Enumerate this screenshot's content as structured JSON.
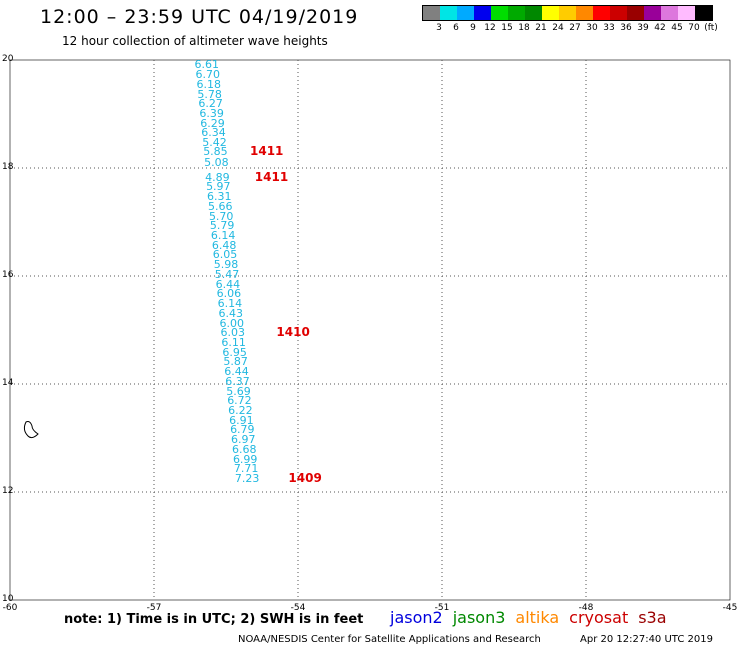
{
  "header": {
    "title": "12:00 – 23:59 UTC 04/19/2019",
    "subtitle": "12 hour collection of altimeter wave heights"
  },
  "legend": {
    "colors": [
      "#808080",
      "#00e5e5",
      "#00aaff",
      "#0000ee",
      "#00dd00",
      "#00aa00",
      "#008800",
      "#ffff00",
      "#ffcc00",
      "#ff8800",
      "#ff0000",
      "#cc0000",
      "#990000",
      "#990099",
      "#dd77dd",
      "#ffbbff",
      "#000000"
    ],
    "labels": [
      "3",
      "6",
      "9",
      "12",
      "15",
      "18",
      "21",
      "24",
      "27",
      "30",
      "33",
      "36",
      "39",
      "42",
      "45",
      "70",
      "(ft)"
    ]
  },
  "axes": {
    "lon_range": [
      -60,
      -45
    ],
    "lat_range": [
      10,
      20
    ],
    "lon_ticks": [
      "-60",
      "-57",
      "-54",
      "-51",
      "-48",
      "-45"
    ],
    "lat_ticks": [
      "20",
      "18",
      "16",
      "14",
      "12",
      "10"
    ]
  },
  "observations": [
    {
      "label": "6.61",
      "lon": -55.9,
      "lat": 19.9
    },
    {
      "label": "6.70",
      "lon": -55.88,
      "lat": 19.72
    },
    {
      "label": "6.18",
      "lon": -55.86,
      "lat": 19.54
    },
    {
      "label": "5.78",
      "lon": -55.84,
      "lat": 19.36
    },
    {
      "label": "6.27",
      "lon": -55.82,
      "lat": 19.18
    },
    {
      "label": "6.39",
      "lon": -55.8,
      "lat": 19.0
    },
    {
      "label": "6.29",
      "lon": -55.78,
      "lat": 18.82
    },
    {
      "label": "6.34",
      "lon": -55.76,
      "lat": 18.64
    },
    {
      "label": "5.42",
      "lon": -55.74,
      "lat": 18.46
    },
    {
      "label": "5.85",
      "lon": -55.72,
      "lat": 18.3
    },
    {
      "label": "5.08",
      "lon": -55.7,
      "lat": 18.1
    },
    {
      "label": "4.89",
      "lon": -55.68,
      "lat": 17.82
    },
    {
      "label": "5.97",
      "lon": -55.66,
      "lat": 17.64
    },
    {
      "label": "6.31",
      "lon": -55.64,
      "lat": 17.46
    },
    {
      "label": "5.66",
      "lon": -55.62,
      "lat": 17.28
    },
    {
      "label": "5.70",
      "lon": -55.6,
      "lat": 17.1
    },
    {
      "label": "5.79",
      "lon": -55.58,
      "lat": 16.92
    },
    {
      "label": "6.14",
      "lon": -55.56,
      "lat": 16.74
    },
    {
      "label": "6.48",
      "lon": -55.54,
      "lat": 16.56
    },
    {
      "label": "6.05",
      "lon": -55.52,
      "lat": 16.38
    },
    {
      "label": "5.98",
      "lon": -55.5,
      "lat": 16.2
    },
    {
      "label": "5.47",
      "lon": -55.48,
      "lat": 16.02
    },
    {
      "label": "6.44",
      "lon": -55.46,
      "lat": 15.84
    },
    {
      "label": "6.06",
      "lon": -55.44,
      "lat": 15.66
    },
    {
      "label": "6.14",
      "lon": -55.42,
      "lat": 15.48
    },
    {
      "label": "6.43",
      "lon": -55.4,
      "lat": 15.3
    },
    {
      "label": "6.00",
      "lon": -55.38,
      "lat": 15.12
    },
    {
      "label": "6.03",
      "lon": -55.36,
      "lat": 14.94
    },
    {
      "label": "6.11",
      "lon": -55.34,
      "lat": 14.76
    },
    {
      "label": "6.95",
      "lon": -55.32,
      "lat": 14.58
    },
    {
      "label": "5.87",
      "lon": -55.3,
      "lat": 14.4
    },
    {
      "label": "6.44",
      "lon": -55.28,
      "lat": 14.22
    },
    {
      "label": "6.37",
      "lon": -55.26,
      "lat": 14.04
    },
    {
      "label": "5.69",
      "lon": -55.24,
      "lat": 13.86
    },
    {
      "label": "6.72",
      "lon": -55.22,
      "lat": 13.68
    },
    {
      "label": "6.22",
      "lon": -55.2,
      "lat": 13.5
    },
    {
      "label": "6.91",
      "lon": -55.18,
      "lat": 13.32
    },
    {
      "label": "6.79",
      "lon": -55.16,
      "lat": 13.14
    },
    {
      "label": "6.97",
      "lon": -55.14,
      "lat": 12.96
    },
    {
      "label": "6.68",
      "lon": -55.12,
      "lat": 12.78
    },
    {
      "label": "6.99",
      "lon": -55.1,
      "lat": 12.6
    },
    {
      "label": "7.71",
      "lon": -55.08,
      "lat": 12.42
    },
    {
      "label": "7.23",
      "lon": -55.06,
      "lat": 12.24
    }
  ],
  "pass_times": [
    {
      "label": "1411",
      "lon": -55.0,
      "lat": 18.3
    },
    {
      "label": "1411",
      "lon": -54.9,
      "lat": 17.82
    },
    {
      "label": "1410",
      "lon": -54.45,
      "lat": 14.94
    },
    {
      "label": "1409",
      "lon": -54.2,
      "lat": 12.24
    }
  ],
  "note": "note: 1) Time is in UTC; 2) SWH is in feet",
  "satellites": [
    {
      "name": "jason2",
      "color": "#0000dd"
    },
    {
      "name": "jason3",
      "color": "#008800"
    },
    {
      "name": "altika",
      "color": "#ff8800"
    },
    {
      "name": "cryosat",
      "color": "#cc0000"
    },
    {
      "name": "s3a",
      "color": "#990000"
    }
  ],
  "credit": "NOAA/NESDIS Center for Satellite Applications and Research",
  "timestamp": "Apr 20 12:27:40 UTC 2019"
}
